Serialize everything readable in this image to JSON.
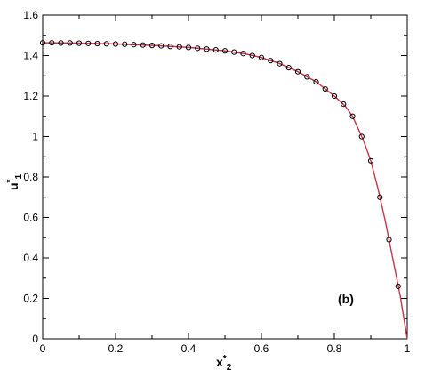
{
  "chart_data": {
    "type": "line",
    "xlabel": {
      "base": "x",
      "sup": "*",
      "sub": "2"
    },
    "ylabel": {
      "base": "u",
      "sup": "*",
      "sub": "1"
    },
    "annotation": "(b)",
    "xlim": [
      0,
      1
    ],
    "ylim": [
      0,
      1.6
    ],
    "xticks": [
      0,
      0.2,
      0.4,
      0.6,
      0.8,
      1
    ],
    "yticks": [
      0,
      0.2,
      0.4,
      0.6,
      0.8,
      1,
      1.2,
      1.4,
      1.6
    ],
    "xminorticks": [
      0.1,
      0.3,
      0.5,
      0.7,
      0.9
    ],
    "yminorticks": [
      0.1,
      0.3,
      0.5,
      0.7,
      0.9,
      1.1,
      1.3,
      1.5
    ],
    "series": [
      {
        "style": "line",
        "color": "#2030d0",
        "x": [
          0,
          0.1,
          0.2,
          0.3,
          0.4,
          0.5,
          0.55,
          0.6,
          0.65,
          0.7,
          0.75,
          0.8,
          0.83,
          0.85,
          0.88,
          0.9,
          0.92,
          0.94,
          0.96,
          0.98,
          0.99,
          1
        ],
        "values": [
          1.463,
          1.461,
          1.457,
          1.45,
          1.44,
          1.423,
          1.41,
          1.39,
          1.36,
          1.32,
          1.27,
          1.2,
          1.15,
          1.1,
          0.98,
          0.88,
          0.74,
          0.58,
          0.4,
          0.22,
          0.11,
          0
        ]
      },
      {
        "style": "line",
        "color": "#e03030",
        "x": [
          0,
          0.1,
          0.2,
          0.3,
          0.4,
          0.5,
          0.55,
          0.6,
          0.65,
          0.7,
          0.75,
          0.8,
          0.83,
          0.85,
          0.88,
          0.9,
          0.92,
          0.94,
          0.96,
          0.98,
          0.99,
          1
        ],
        "values": [
          1.464,
          1.462,
          1.458,
          1.451,
          1.441,
          1.424,
          1.411,
          1.391,
          1.361,
          1.321,
          1.271,
          1.201,
          1.151,
          1.101,
          0.981,
          0.881,
          0.741,
          0.581,
          0.401,
          0.221,
          0.111,
          0
        ]
      },
      {
        "style": "marker",
        "color": "#000000",
        "x": [
          0,
          0.025,
          0.05,
          0.075,
          0.1,
          0.125,
          0.15,
          0.175,
          0.2,
          0.225,
          0.25,
          0.275,
          0.3,
          0.325,
          0.35,
          0.375,
          0.4,
          0.425,
          0.45,
          0.475,
          0.5,
          0.525,
          0.55,
          0.575,
          0.6,
          0.625,
          0.65,
          0.675,
          0.7,
          0.725,
          0.75,
          0.775,
          0.8,
          0.825,
          0.85,
          0.875,
          0.9,
          0.925,
          0.95,
          0.975
        ],
        "values": [
          1.463,
          1.463,
          1.462,
          1.462,
          1.461,
          1.46,
          1.459,
          1.458,
          1.457,
          1.456,
          1.454,
          1.452,
          1.45,
          1.448,
          1.445,
          1.443,
          1.44,
          1.436,
          1.432,
          1.428,
          1.423,
          1.417,
          1.41,
          1.4,
          1.39,
          1.375,
          1.36,
          1.34,
          1.32,
          1.295,
          1.27,
          1.235,
          1.2,
          1.16,
          1.1,
          1.0,
          0.88,
          0.7,
          0.49,
          0.26
        ]
      }
    ]
  }
}
